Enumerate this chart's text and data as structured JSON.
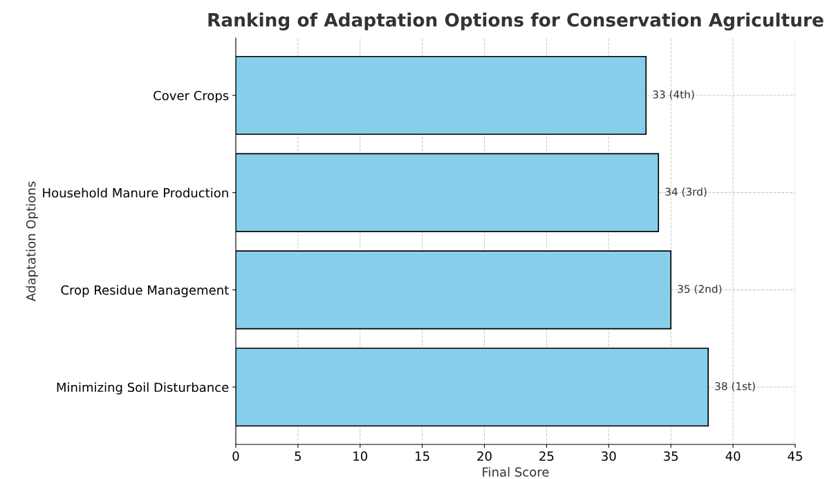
{
  "chart_data": {
    "type": "bar",
    "orientation": "horizontal",
    "title": "Ranking of Adaptation Options for Conservation Agriculture",
    "xlabel": "Final Score",
    "ylabel": "Adaptation Options",
    "categories": [
      "Cover Crops",
      "Household Manure Production",
      "Crop Residue Management",
      "Minimizing Soil Disturbance"
    ],
    "values": [
      33,
      34,
      35,
      38
    ],
    "value_labels": [
      "33 (4th)",
      "34 (3rd)",
      "35 (2nd)",
      "38 (1st)"
    ],
    "color": "#87ceeb",
    "xlim": [
      0,
      45
    ],
    "xticks": [
      0,
      5,
      10,
      15,
      20,
      25,
      30,
      35,
      40,
      45
    ],
    "grid": true
  }
}
